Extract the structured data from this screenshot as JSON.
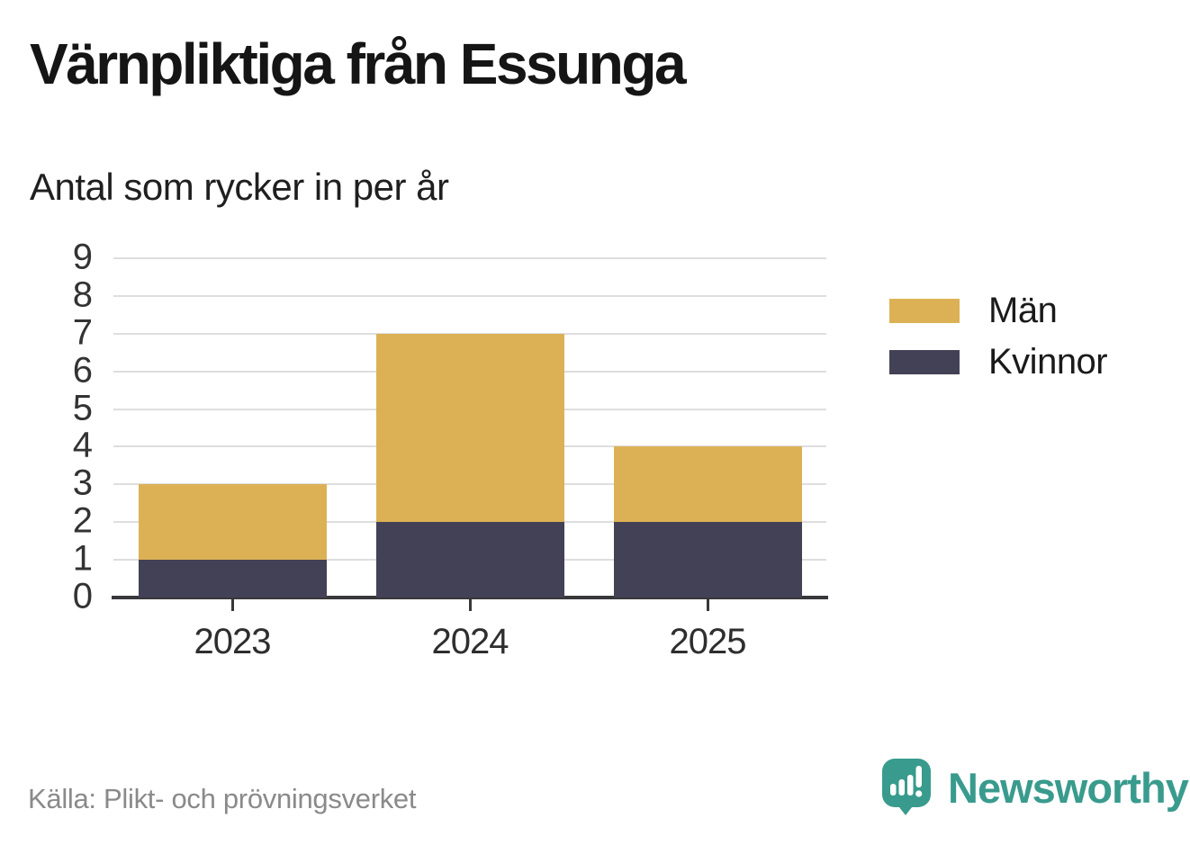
{
  "header": {
    "title": "Värnpliktiga från Essunga",
    "subtitle": "Antal som rycker in per år"
  },
  "chart_data": {
    "type": "bar",
    "stacked": true,
    "title": "Värnpliktiga från Essunga",
    "subtitle": "Antal som rycker in per år",
    "categories": [
      "2023",
      "2024",
      "2025"
    ],
    "series": [
      {
        "name": "Män",
        "color": "#dcb155",
        "values": [
          2,
          5,
          2
        ]
      },
      {
        "name": "Kvinnor",
        "color": "#434155",
        "values": [
          1,
          2,
          2
        ]
      }
    ],
    "stack_order_bottom_to_top": [
      "Kvinnor",
      "Män"
    ],
    "totals": [
      3,
      7,
      4
    ],
    "xlabel": "",
    "ylabel": "",
    "ylim": [
      0,
      9
    ],
    "yticks": [
      0,
      1,
      2,
      3,
      4,
      5,
      6,
      7,
      8,
      9
    ],
    "grid": true,
    "legend_position": "right"
  },
  "legend": {
    "items": [
      {
        "label": "Män",
        "color": "#dcb155"
      },
      {
        "label": "Kvinnor",
        "color": "#434155"
      }
    ]
  },
  "footer": {
    "source": "Källa: Plikt- och prövningsverket",
    "brand": "Newsworthy",
    "logo_icon": "speech-bubble-bar-chart-exclamation-icon"
  },
  "colors": {
    "men": "#dcb155",
    "women": "#434155",
    "gridline": "#dedede",
    "axis": "#38383b",
    "brand_teal": "#399b8d",
    "source_gray": "#8a8a8a",
    "title_text": "#151515"
  }
}
